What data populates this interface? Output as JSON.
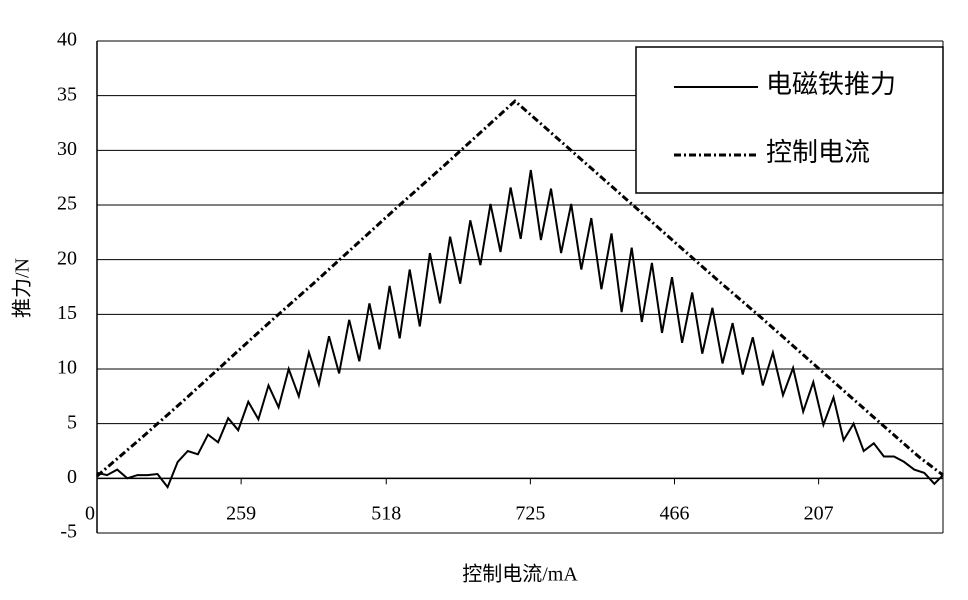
{
  "chart_data": {
    "type": "line",
    "xlabel": "控制电流/mA",
    "ylabel": "推力/N",
    "xlim": [
      0,
      587
    ],
    "ylim": [
      -5,
      40
    ],
    "xticks": [
      0,
      {
        "value": 100,
        "label": "259"
      },
      {
        "value": 200.7,
        "label": "518"
      },
      {
        "value": 300.7,
        "label": "725"
      },
      {
        "value": 400.7,
        "label": "466"
      },
      {
        "value": 500.7,
        "label": "207"
      }
    ],
    "yticks": [
      -5,
      0,
      5,
      10,
      15,
      20,
      25,
      30,
      35,
      40
    ],
    "grid": true,
    "legend": "top-right",
    "series": [
      {
        "name": "电磁铁推力",
        "color": "#000000",
        "linestyle": "solid",
        "x": [
          0,
          7,
          14,
          21,
          28,
          35,
          42,
          49,
          56,
          63,
          70,
          77,
          84,
          91,
          98,
          105,
          112,
          119,
          126,
          133,
          140,
          147,
          154,
          161,
          168,
          175,
          182,
          189,
          196,
          203,
          210,
          217,
          224,
          231,
          238,
          245,
          252,
          259,
          266,
          273,
          280,
          287,
          294,
          301,
          308,
          315,
          322,
          329,
          336,
          343,
          350,
          357,
          364,
          371,
          378,
          385,
          392,
          399,
          406,
          413,
          420,
          427,
          434,
          441,
          448,
          455,
          462,
          469,
          476,
          483,
          490,
          497,
          504,
          511,
          518,
          525,
          532,
          539,
          546,
          553,
          560,
          567,
          574,
          581,
          587
        ],
        "values": [
          0.5,
          0.3,
          0.8,
          0,
          0.3,
          0.3,
          0.4,
          -0.8,
          1.5,
          2.5,
          2.2,
          4.0,
          3.3,
          5.5,
          4.4,
          7.0,
          5.4,
          8.5,
          6.5,
          10.0,
          7.5,
          11.5,
          8.6,
          13.0,
          9.6,
          14.5,
          10.7,
          16.0,
          11.8,
          17.6,
          12.8,
          19.1,
          13.9,
          20.6,
          16,
          22.1,
          17.8,
          23.6,
          19.5,
          25.1,
          20.7,
          26.6,
          21.9,
          28.2,
          21.8,
          26.5,
          20.6,
          25.1,
          19.1,
          23.8,
          17.3,
          22.4,
          15.2,
          21.1,
          14.3,
          19.7,
          13.3,
          18.4,
          12.4,
          17.0,
          11.4,
          15.6,
          10.5,
          14.2,
          9.5,
          12.9,
          8.5,
          11.5,
          7.6,
          10.1,
          6.1,
          8.8,
          4.9,
          7.4,
          3.5,
          5.0,
          2.5,
          3.2,
          2.0,
          2.0,
          1.5,
          0.8,
          0.5,
          -0.5,
          0.3
        ]
      },
      {
        "name": "控制电流",
        "color": "#000000",
        "linestyle": "dashdot",
        "x": [
          0,
          30,
          60,
          90,
          120,
          150,
          180,
          210,
          240,
          270,
          290,
          310,
          340,
          370,
          400,
          430,
          460,
          490,
          520,
          550,
          570,
          587
        ],
        "values": [
          0.2,
          3.6,
          7.1,
          10.7,
          14.3,
          17.8,
          21.4,
          25,
          28.5,
          32.1,
          34.5,
          32.2,
          28.7,
          25.2,
          21.7,
          18.2,
          14.8,
          11.3,
          7.8,
          4.3,
          2,
          0.3
        ]
      }
    ]
  }
}
